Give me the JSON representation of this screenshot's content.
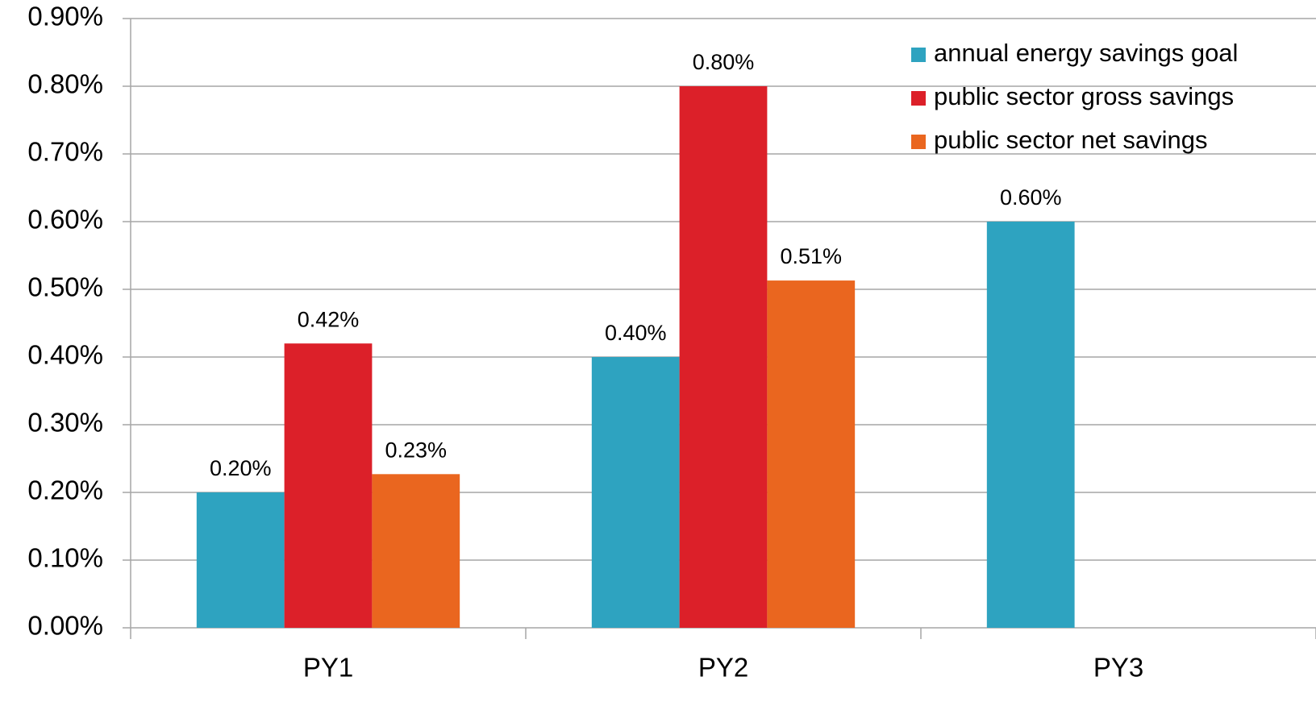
{
  "chart_data": {
    "type": "bar",
    "categories": [
      "PY1",
      "PY2",
      "PY3"
    ],
    "series": [
      {
        "name": "annual energy savings goal",
        "color": "#2ea3c0",
        "values": [
          0.2,
          0.4,
          0.6
        ],
        "value_labels": [
          "0.20%",
          "0.40%",
          "0.60%"
        ]
      },
      {
        "name": "public sector gross savings",
        "color": "#dc2029",
        "values": [
          0.42,
          0.8,
          null
        ],
        "value_labels": [
          "0.42%",
          "0.80%",
          null
        ]
      },
      {
        "name": "public sector net savings",
        "color": "#ea661f",
        "values": [
          0.227,
          0.513,
          null
        ],
        "value_labels": [
          "0.23%",
          "0.51%",
          null
        ]
      }
    ],
    "ylim": [
      0,
      0.9
    ],
    "yticks": [
      {
        "value": 0,
        "label": "0.00%"
      },
      {
        "value": 0.1,
        "label": "0.10%"
      },
      {
        "value": 0.2,
        "label": "0.20%"
      },
      {
        "value": 0.3,
        "label": "0.30%"
      },
      {
        "value": 0.4,
        "label": "0.40%"
      },
      {
        "value": 0.5,
        "label": "0.50%"
      },
      {
        "value": 0.6,
        "label": "0.60%"
      },
      {
        "value": 0.7,
        "label": "0.70%"
      },
      {
        "value": 0.8,
        "label": "0.80%"
      },
      {
        "value": 0.9,
        "label": "0.90%"
      }
    ],
    "grid": true,
    "legend": "top-right"
  }
}
